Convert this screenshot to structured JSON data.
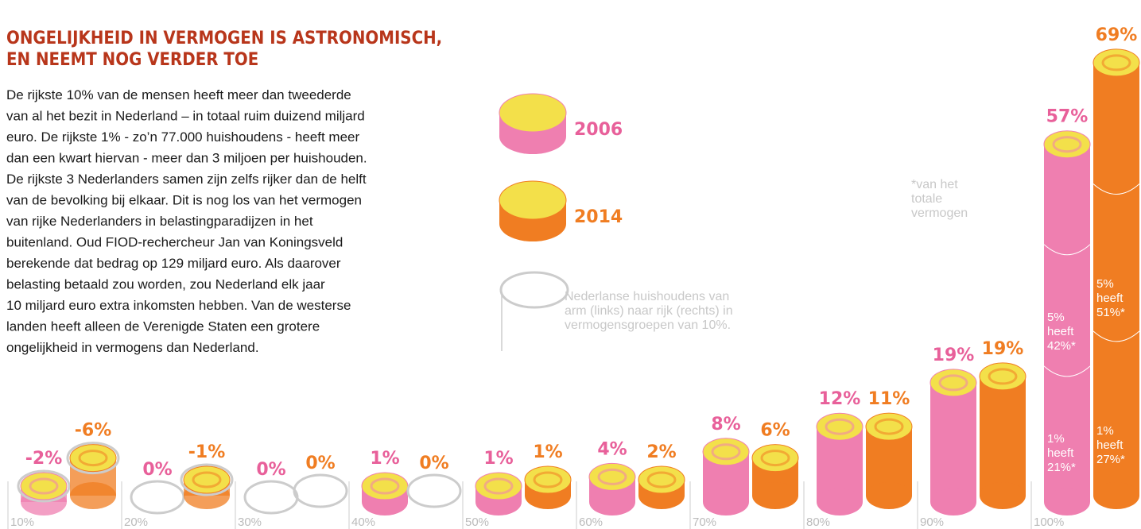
{
  "chart_data": {
    "type": "coin-bar",
    "title": [
      "ONGELIJKHEID IN VERMOGEN IS ASTRONOMISCH,",
      "EN NEEMT NOG VERDER TOE"
    ],
    "text": [
      "De rijkste 10% van de mensen heeft meer dan tweederde",
      "van al het bezit in Nederland – in totaal ruim duizend miljard",
      "euro. De rijkste 1% - zo’n 77.000 huishoudens - heeft meer",
      "dan een kwart hiervan - meer dan 3 miljoen per huishouden.",
      "De rijkste 3 Nederlanders samen zijn zelfs rijker dan de helft",
      "van de bevolking bij elkaar. Dit is nog los van het vermogen",
      "van rijke Nederlanders in  belastingparadijzen in het",
      "buitenland. Oud FIOD-rechercheur Jan van Koningsveld",
      "berekende dat bedrag op 129 miljard euro. Als daarover",
      "belasting betaald zou worden, zou Nederland elk jaar",
      "10 miljard euro extra inkomsten hebben. Van de westerse",
      "landen heeft alleen de Verenigde Staten een grotere",
      "ongelijkheid in vermogens dan Nederland."
    ],
    "footnote": [
      "*van het",
      "totale",
      "vermogen"
    ],
    "group_note": [
      "Nederlanse huishoudens van",
      "arm (links) naar rijk (rechts) in",
      "vermogensgroepen van 10%."
    ],
    "categories": [
      "10%",
      "20%",
      "30%",
      "40%",
      "50%",
      "60%",
      "70%",
      "80%",
      "90%",
      "100%"
    ],
    "series": [
      {
        "name": "2006",
        "color": "#ef7fb0",
        "label_color": "#e8609a",
        "values": [
          -2,
          0,
          0,
          1,
          1,
          4,
          8,
          12,
          19,
          57
        ],
        "value_labels": [
          "-2%",
          "0%",
          "0%",
          "1%",
          "1%",
          "4%",
          "8%",
          "12%",
          "19%",
          "57%"
        ],
        "segment_notes": [
          [
            "1%",
            "heeft",
            "21%*"
          ],
          [
            "5%",
            "heeft",
            "42%*"
          ]
        ]
      },
      {
        "name": "2014",
        "color": "#f07d22",
        "label_color": "#f07d22",
        "values": [
          -6,
          -1,
          0,
          0,
          1,
          2,
          6,
          11,
          19,
          69
        ],
        "value_labels": [
          "-6%",
          "-1%",
          "0%",
          "0%",
          "1%",
          "2%",
          "6%",
          "11%",
          "19%",
          "69%"
        ],
        "segment_notes": [
          [
            "1%",
            "heeft",
            "27%*"
          ],
          [
            "5%",
            "heeft",
            "51%*"
          ]
        ]
      }
    ]
  }
}
